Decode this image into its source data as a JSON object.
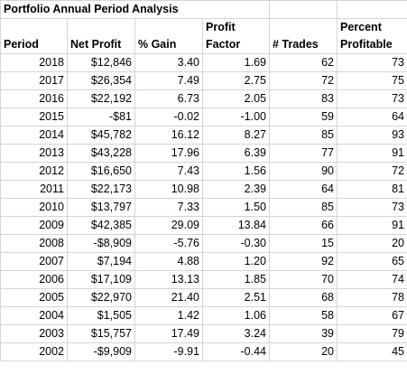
{
  "title": "Portfolio Annual Period Analysis",
  "headers": {
    "period": "Period",
    "net_profit": "Net Profit",
    "pct_gain": "% Gain",
    "profit_factor_line1": "Profit",
    "profit_factor_line2": "Factor",
    "trades": "# Trades",
    "pct_profitable_line1": "Percent",
    "pct_profitable_line2": "Profitable"
  },
  "rows": [
    {
      "period": "2018",
      "net_profit": "$12,846",
      "pct_gain": "3.40",
      "profit_factor": "1.69",
      "trades": "62",
      "pct_profitable": "73"
    },
    {
      "period": "2017",
      "net_profit": "$26,354",
      "pct_gain": "7.49",
      "profit_factor": "2.75",
      "trades": "72",
      "pct_profitable": "75"
    },
    {
      "period": "2016",
      "net_profit": "$22,192",
      "pct_gain": "6.73",
      "profit_factor": "2.05",
      "trades": "83",
      "pct_profitable": "73"
    },
    {
      "period": "2015",
      "net_profit": "-$81",
      "pct_gain": "-0.02",
      "profit_factor": "-1.00",
      "trades": "59",
      "pct_profitable": "64"
    },
    {
      "period": "2014",
      "net_profit": "$45,782",
      "pct_gain": "16.12",
      "profit_factor": "8.27",
      "trades": "85",
      "pct_profitable": "93"
    },
    {
      "period": "2013",
      "net_profit": "$43,228",
      "pct_gain": "17.96",
      "profit_factor": "6.39",
      "trades": "77",
      "pct_profitable": "91"
    },
    {
      "period": "2012",
      "net_profit": "$16,650",
      "pct_gain": "7.43",
      "profit_factor": "1.56",
      "trades": "90",
      "pct_profitable": "72"
    },
    {
      "period": "2011",
      "net_profit": "$22,173",
      "pct_gain": "10.98",
      "profit_factor": "2.39",
      "trades": "64",
      "pct_profitable": "81"
    },
    {
      "period": "2010",
      "net_profit": "$13,797",
      "pct_gain": "7.33",
      "profit_factor": "1.50",
      "trades": "85",
      "pct_profitable": "73"
    },
    {
      "period": "2009",
      "net_profit": "$42,385",
      "pct_gain": "29.09",
      "profit_factor": "13.84",
      "trades": "66",
      "pct_profitable": "91"
    },
    {
      "period": "2008",
      "net_profit": "-$8,909",
      "pct_gain": "-5.76",
      "profit_factor": "-0.30",
      "trades": "15",
      "pct_profitable": "20"
    },
    {
      "period": "2007",
      "net_profit": "$7,194",
      "pct_gain": "4.88",
      "profit_factor": "1.20",
      "trades": "92",
      "pct_profitable": "65"
    },
    {
      "period": "2006",
      "net_profit": "$17,109",
      "pct_gain": "13.13",
      "profit_factor": "1.85",
      "trades": "70",
      "pct_profitable": "74"
    },
    {
      "period": "2005",
      "net_profit": "$22,970",
      "pct_gain": "21.40",
      "profit_factor": "2.51",
      "trades": "68",
      "pct_profitable": "78"
    },
    {
      "period": "2004",
      "net_profit": "$1,505",
      "pct_gain": "1.42",
      "profit_factor": "1.06",
      "trades": "58",
      "pct_profitable": "67"
    },
    {
      "period": "2003",
      "net_profit": "$15,757",
      "pct_gain": "17.49",
      "profit_factor": "3.24",
      "trades": "39",
      "pct_profitable": "79"
    },
    {
      "period": "2002",
      "net_profit": "-$9,909",
      "pct_gain": "-9.91",
      "profit_factor": "-0.44",
      "trades": "20",
      "pct_profitable": "45"
    }
  ],
  "colors": {
    "gridline": "#d4d4d4",
    "text": "#000000",
    "background": "#ffffff"
  }
}
